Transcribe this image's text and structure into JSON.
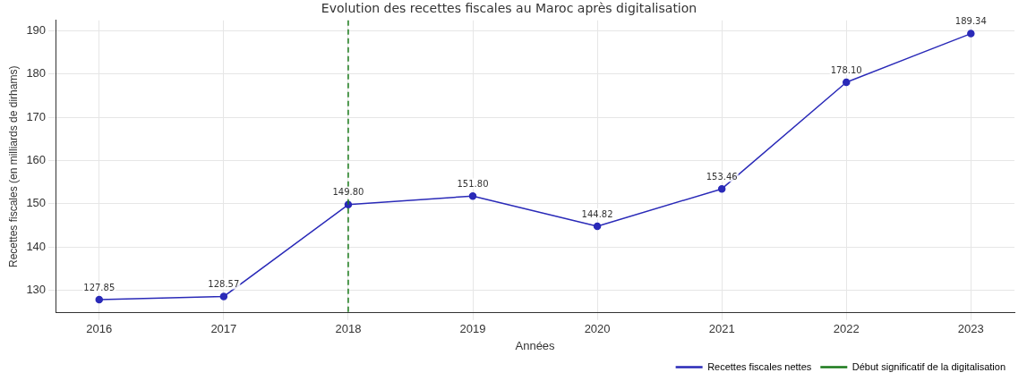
{
  "chart_data": {
    "type": "line",
    "title": "Evolution des recettes fiscales au Maroc après digitalisation",
    "xlabel": "Années",
    "ylabel": "Recettes fiscales (en milliards de dirhams)",
    "x": [
      2016,
      2017,
      2018,
      2019,
      2020,
      2021,
      2022,
      2023
    ],
    "series": [
      {
        "name": "Recettes fiscales nettes",
        "color": "#2a2ab8",
        "values": [
          127.85,
          128.57,
          149.8,
          151.8,
          144.82,
          153.46,
          178.1,
          189.34
        ],
        "value_labels": [
          "127.85",
          "128.57",
          "149.80",
          "151.80",
          "144.82",
          "153.46",
          "178.10",
          "189.34"
        ]
      }
    ],
    "xlim": [
      2015.65,
      2023.35
    ],
    "xticks": [
      2016,
      2017,
      2018,
      2019,
      2020,
      2021,
      2022,
      2023
    ],
    "ylim": [
      124.8,
      192.4
    ],
    "yticks": [
      130,
      140,
      150,
      160,
      170,
      180,
      190
    ],
    "ref_lines": [
      {
        "axis": "x",
        "value": 2018,
        "label": "Début significatif de la digitalisation",
        "color": "#1a7a1a",
        "line_style": "dashed"
      }
    ],
    "grid": true,
    "legend": "bottom right",
    "marker": "circle",
    "line_style": "solid"
  }
}
